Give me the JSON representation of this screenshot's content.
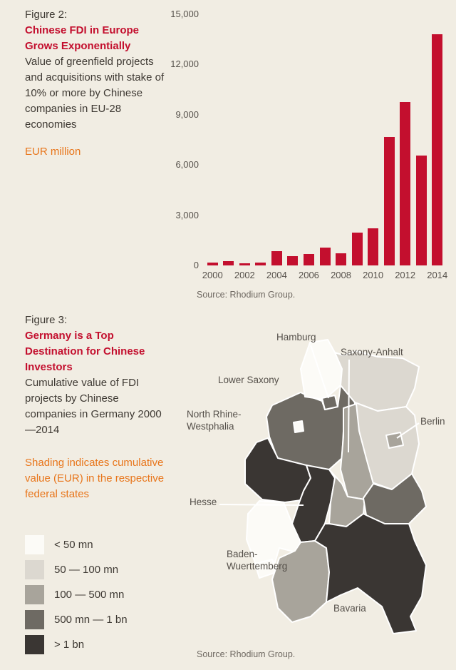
{
  "page": {
    "background": "#f1ede3",
    "accent_red": "#c30f2e",
    "accent_orange": "#e8751a"
  },
  "figure2": {
    "label": "Figure 2:",
    "title": "Chinese FDI in Europe Grows Exponentially",
    "description": "Value of greenfield projects and acquisitions with stake of 10% or more by Chinese companies in EU-28 economies",
    "unit_label": "EUR million",
    "source": "Source: Rhodium Group."
  },
  "figure3": {
    "label": "Figure 3:",
    "title": "Germany is a Top Destination for Chinese Investors",
    "description": "Cumulative value of FDI projects by Chinese companies in Germany 2000—2014",
    "note": "Shading indicates cumulative value (EUR) in the respective federal states",
    "source": "Source: Rhodium Group.",
    "legend": [
      {
        "label": "< 50 mn",
        "color": "#fcfbf7"
      },
      {
        "label": "50 — 100 mn",
        "color": "#dcd8d0"
      },
      {
        "label": "100 — 500 mn",
        "color": "#a8a49b"
      },
      {
        "label": "500 mn — 1 bn",
        "color": "#6e6a63"
      },
      {
        "label": "> 1 bn",
        "color": "#3a3633"
      }
    ],
    "map_labels": {
      "hamburg": "Hamburg",
      "saxony_anhalt": "Saxony-Anhalt",
      "lower_saxony": "Lower Saxony",
      "north_rhine_westphalia": "North Rhine-Westphalia",
      "berlin": "Berlin",
      "hesse": "Hesse",
      "baden_wuerttemberg": "Baden-Wuerttemberg",
      "bavaria": "Bavaria"
    }
  },
  "chart_data": [
    {
      "type": "bar",
      "title": "Chinese FDI in Europe Grows Exponentially",
      "xlabel": "",
      "ylabel": "EUR million",
      "categories": [
        2000,
        2001,
        2002,
        2003,
        2004,
        2005,
        2006,
        2007,
        2008,
        2009,
        2010,
        2011,
        2012,
        2013,
        2014
      ],
      "values": [
        150,
        250,
        130,
        170,
        850,
        550,
        680,
        1050,
        720,
        1950,
        2200,
        7650,
        9750,
        6550,
        13800
      ],
      "bar_color": "#c30f2e",
      "ylim": [
        0,
        15000
      ],
      "yticks": [
        0,
        3000,
        6000,
        9000,
        12000,
        15000
      ],
      "ytick_labels": [
        "0",
        "3,000",
        "6,000",
        "9,000",
        "12,000",
        "15,000"
      ],
      "xtick_labels": [
        "2000",
        "2002",
        "2004",
        "2006",
        "2008",
        "2010",
        "2012",
        "2014"
      ],
      "grid": false,
      "legend_position": "none"
    },
    {
      "type": "choropleth_map",
      "title": "Germany is a Top Destination for Chinese Investors",
      "region": "Germany federal states",
      "unit": "Cumulative value (EUR), 2000—2014",
      "bins": [
        "< 50 mn",
        "50 — 100 mn",
        "100 — 500 mn",
        "500 mn — 1 bn",
        "> 1 bn"
      ],
      "shade_colors": {
        "lt50": "#fcfbf7",
        "b50_100": "#dcd8d0",
        "b100_500": "#a8a49b",
        "b500_1bn": "#6e6a63",
        "gt1bn": "#3a3633"
      },
      "states": {
        "schleswig_holstein": "lt50",
        "hamburg": "b500_1bn",
        "mecklenburg_vorpommern": "b50_100",
        "lower_saxony": "b500_1bn",
        "bremen": "lt50",
        "brandenburg": "b50_100",
        "berlin": "b100_500",
        "saxony_anhalt": "b100_500",
        "north_rhine_westphalia": "gt1bn",
        "hesse": "gt1bn",
        "thuringia": "b100_500",
        "saxony": "b500_1bn",
        "rhineland_palatinate": "lt50",
        "saarland": "lt50",
        "baden_wuerttemberg": "b100_500",
        "bavaria": "gt1bn"
      }
    }
  ]
}
